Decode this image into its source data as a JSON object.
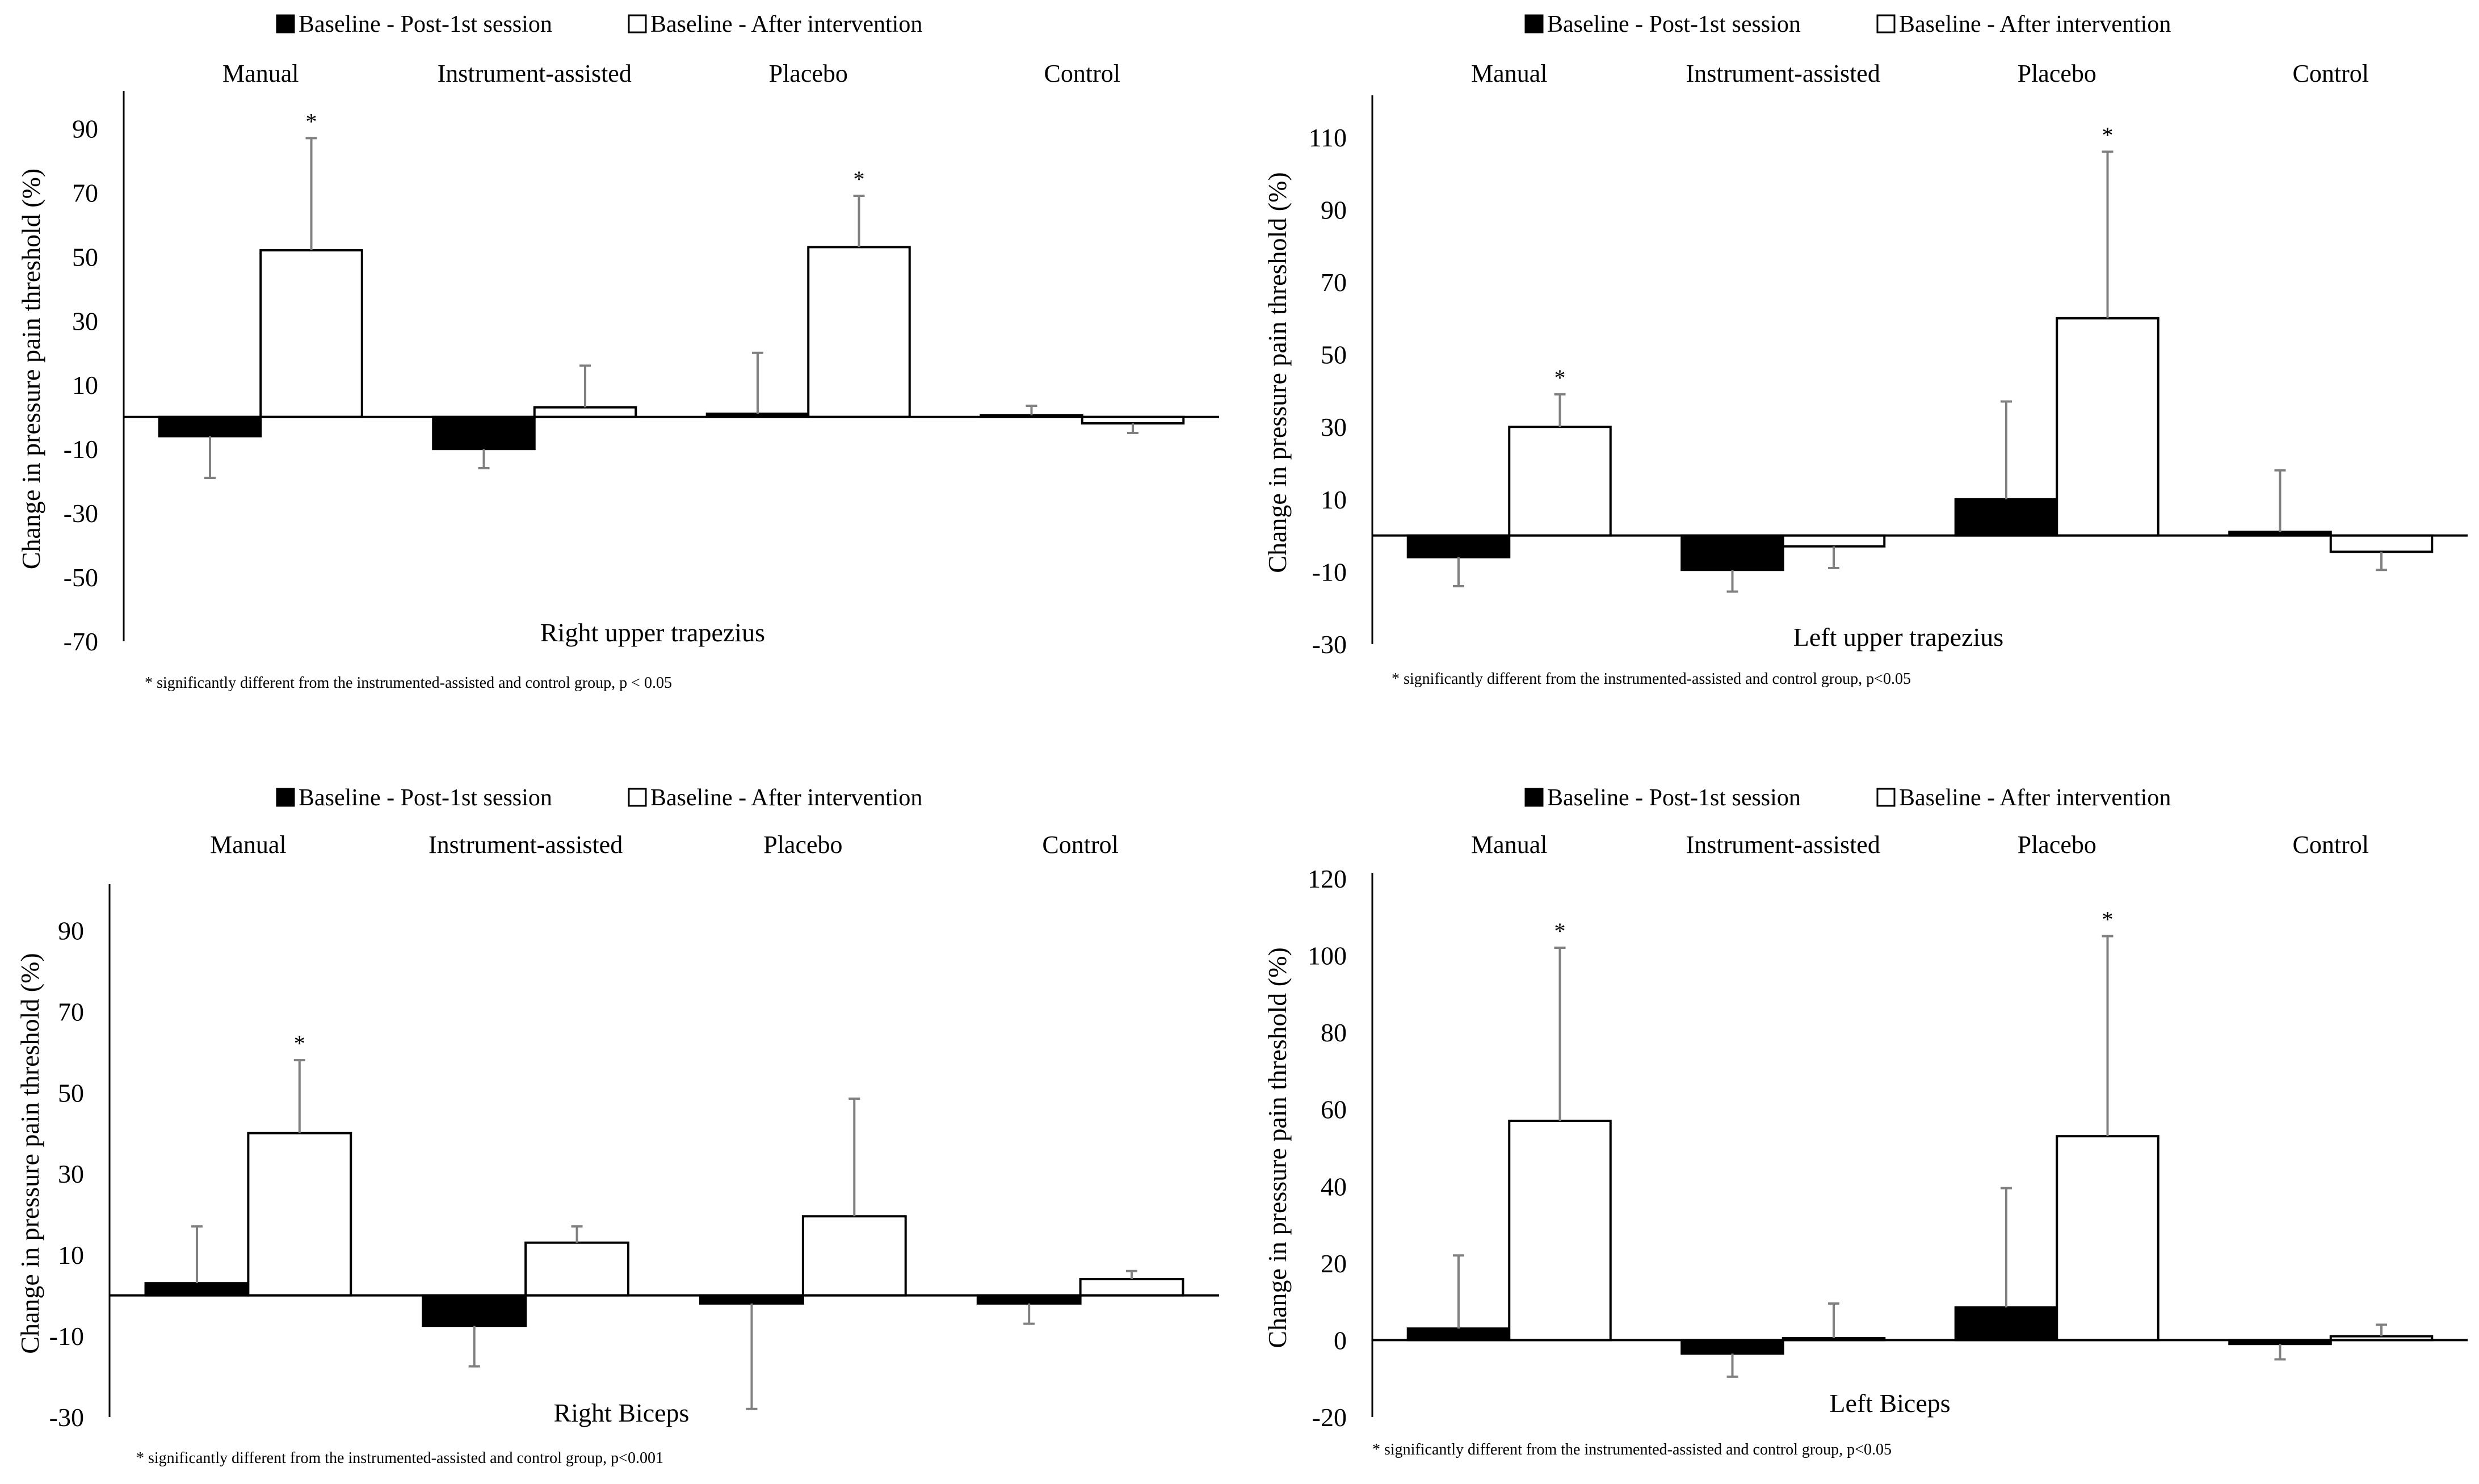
{
  "legend": {
    "series1": "Baseline - Post-1st session",
    "series2": "Baseline - After intervention"
  },
  "colors": {
    "series1": "#000000",
    "series2": "#ffffff",
    "error_bar": "#808080",
    "axis": "#000000"
  },
  "chart_data": [
    {
      "type": "bar",
      "title": "Right upper trapezius",
      "footnote": "* significantly different from the instrumented-assisted and control group, p < 0.05",
      "ylabel": "Change in pressure pain threshold (%)",
      "categories": [
        "Manual",
        "Instrument-assisted",
        "Placebo",
        "Control"
      ],
      "ylim": [
        -70,
        100
      ],
      "yticks": [
        90,
        70,
        50,
        30,
        10,
        -10,
        -30,
        -50,
        -70
      ],
      "series": [
        {
          "name": "Baseline - Post-1st session",
          "values": [
            -6,
            -10,
            1,
            0.5
          ],
          "errors": [
            13,
            6,
            19,
            3
          ]
        },
        {
          "name": "Baseline - After intervention",
          "values": [
            52,
            3,
            53,
            -2
          ],
          "errors": [
            35,
            13,
            16,
            3
          ]
        }
      ],
      "significant": [
        [
          false,
          false,
          false,
          false
        ],
        [
          true,
          false,
          true,
          false
        ]
      ]
    },
    {
      "type": "bar",
      "title": "Left upper trapezius",
      "footnote": "* significantly different from the instrumented-assisted and control group, p<0.05",
      "ylabel": "Change in pressure pain threshold (%)",
      "categories": [
        "Manual",
        "Instrument-assisted",
        "Placebo",
        "Control"
      ],
      "ylim": [
        -30,
        120
      ],
      "yticks": [
        110,
        90,
        70,
        50,
        30,
        10,
        -10,
        -30
      ],
      "series": [
        {
          "name": "Baseline - Post-1st session",
          "values": [
            -6,
            -9.5,
            10,
            1
          ],
          "errors": [
            8,
            6,
            27,
            17
          ]
        },
        {
          "name": "Baseline - After intervention",
          "values": [
            30,
            -3,
            60,
            -4.5
          ],
          "errors": [
            9,
            6,
            46,
            5
          ]
        }
      ],
      "significant": [
        [
          false,
          false,
          false,
          false
        ],
        [
          true,
          false,
          true,
          false
        ]
      ]
    },
    {
      "type": "bar",
      "title": "Right Biceps",
      "footnote": "* significantly different from the instrumented-assisted and control group, p<0.001",
      "ylabel": "Change in pressure pain threshold (%)",
      "categories": [
        "Manual",
        "Instrument-assisted",
        "Placebo",
        "Control"
      ],
      "ylim": [
        -30,
        100
      ],
      "yticks": [
        90,
        70,
        50,
        30,
        10,
        -10,
        -30
      ],
      "series": [
        {
          "name": "Baseline - Post-1st session",
          "values": [
            3,
            -7.5,
            -2,
            -2
          ],
          "errors": [
            14,
            10,
            26,
            5
          ]
        },
        {
          "name": "Baseline - After intervention",
          "values": [
            40,
            13,
            19.5,
            4
          ],
          "errors": [
            18,
            4,
            29,
            2
          ]
        }
      ],
      "significant": [
        [
          false,
          false,
          false,
          false
        ],
        [
          true,
          false,
          false,
          false
        ]
      ]
    },
    {
      "type": "bar",
      "title": "Left Biceps",
      "footnote": "* significantly different from the instrumented-assisted and control group, p<0.05",
      "ylabel": "Change in pressure pain threshold (%)",
      "categories": [
        "Manual",
        "Instrument-assisted",
        "Placebo",
        "Control"
      ],
      "ylim": [
        -20,
        120
      ],
      "yticks": [
        120,
        100,
        80,
        60,
        40,
        20,
        0,
        -20
      ],
      "series": [
        {
          "name": "Baseline - Post-1st session",
          "values": [
            3,
            -3.5,
            8.5,
            -1
          ],
          "errors": [
            19,
            6,
            31,
            4
          ]
        },
        {
          "name": "Baseline - After intervention",
          "values": [
            57,
            0.5,
            53,
            1
          ],
          "errors": [
            45,
            9,
            52,
            3
          ]
        }
      ],
      "significant": [
        [
          false,
          false,
          false,
          false
        ],
        [
          true,
          false,
          true,
          false
        ]
      ]
    }
  ]
}
